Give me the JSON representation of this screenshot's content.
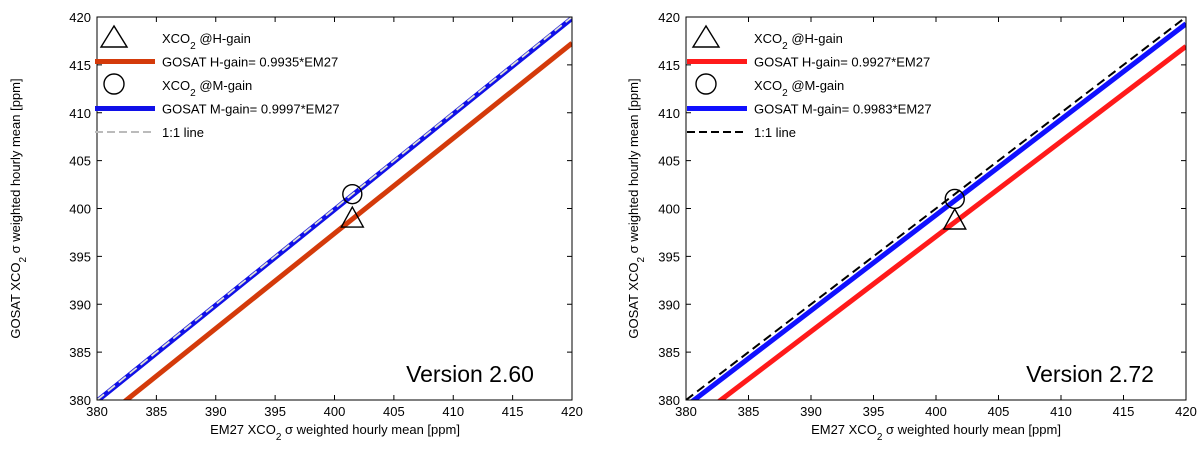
{
  "chart_data": [
    {
      "type": "line",
      "xlabel": "EM27 XCO₂ σ weighted hourly mean [ppm]",
      "ylabel": "GOSAT XCO₂ σ weighted hourly mean [ppm]",
      "xlim": [
        380,
        420
      ],
      "ylim": [
        380,
        420
      ],
      "xticks": [
        380,
        385,
        390,
        395,
        400,
        405,
        410,
        415,
        420
      ],
      "yticks": [
        380,
        385,
        390,
        395,
        400,
        405,
        410,
        415,
        420
      ],
      "grid": false,
      "legend_placement": "top-left",
      "annotation": "Version 2.60",
      "legend": [
        {
          "label": "XCO₂ @H-gain",
          "kind": "marker",
          "marker": "triangle"
        },
        {
          "label": "GOSAT H-gain= 0.9935*EM27",
          "kind": "line",
          "color": "#d43a0a",
          "style": "solid"
        },
        {
          "label": "XCO₂ @M-gain",
          "kind": "marker",
          "marker": "circle"
        },
        {
          "label": "GOSAT M-gain= 0.9997*EM27",
          "kind": "line",
          "color": "#1010e8",
          "style": "solid"
        },
        {
          "label": "1:1 line",
          "kind": "line",
          "color": "#bbbbbb",
          "style": "dashed"
        }
      ],
      "series": [
        {
          "name": "GOSAT H-gain= 0.9935*EM27",
          "slope": 0.9935,
          "x": [
            380,
            420
          ],
          "y": [
            377.53,
            417.27
          ],
          "color": "#d43a0a"
        },
        {
          "name": "GOSAT M-gain= 0.9997*EM27",
          "slope": 0.9997,
          "x": [
            380,
            420
          ],
          "y": [
            379.89,
            419.87
          ],
          "color": "#1010e8"
        },
        {
          "name": "1:1 line",
          "slope": 1.0,
          "x": [
            380,
            420
          ],
          "y": [
            380,
            420
          ],
          "color": "#bbbbbb"
        }
      ],
      "points": [
        {
          "name": "XCO₂ @H-gain",
          "marker": "triangle",
          "x": 401.5,
          "y": 399.0
        },
        {
          "name": "XCO₂ @M-gain",
          "marker": "circle",
          "x": 401.5,
          "y": 401.5
        }
      ]
    },
    {
      "type": "line",
      "xlabel": "EM27 XCO₂ σ weighted hourly mean [ppm]",
      "ylabel": "GOSAT XCO₂ σ weighted hourly mean [ppm]",
      "xlim": [
        380,
        420
      ],
      "ylim": [
        380,
        420
      ],
      "xticks": [
        380,
        385,
        390,
        395,
        400,
        405,
        410,
        415,
        420
      ],
      "yticks": [
        380,
        385,
        390,
        395,
        400,
        405,
        410,
        415,
        420
      ],
      "grid": false,
      "legend_placement": "top-left",
      "annotation": "Version 2.72",
      "legend": [
        {
          "label": "XCO₂ @H-gain",
          "kind": "marker",
          "marker": "triangle"
        },
        {
          "label": "GOSAT H-gain= 0.9927*EM27",
          "kind": "line",
          "color": "#ff1a1a",
          "style": "solid"
        },
        {
          "label": "XCO₂ @M-gain",
          "kind": "marker",
          "marker": "circle"
        },
        {
          "label": "GOSAT M-gain= 0.9983*EM27",
          "kind": "line",
          "color": "#1010ff",
          "style": "solid"
        },
        {
          "label": "1:1 line",
          "kind": "line",
          "color": "#000000",
          "style": "dashed"
        }
      ],
      "series": [
        {
          "name": "GOSAT H-gain= 0.9927*EM27",
          "slope": 0.9927,
          "x": [
            380,
            420
          ],
          "y": [
            377.23,
            416.93
          ],
          "color": "#ff1a1a"
        },
        {
          "name": "GOSAT M-gain= 0.9983*EM27",
          "slope": 0.9983,
          "x": [
            380,
            420
          ],
          "y": [
            379.35,
            419.29
          ],
          "color": "#1010ff"
        },
        {
          "name": "1:1 line",
          "slope": 1.0,
          "x": [
            380,
            420
          ],
          "y": [
            380,
            420
          ],
          "color": "#000000"
        }
      ],
      "points": [
        {
          "name": "XCO₂ @H-gain",
          "marker": "triangle",
          "x": 401.5,
          "y": 398.8
        },
        {
          "name": "XCO₂ @M-gain",
          "marker": "circle",
          "x": 401.5,
          "y": 401.0
        }
      ]
    }
  ]
}
